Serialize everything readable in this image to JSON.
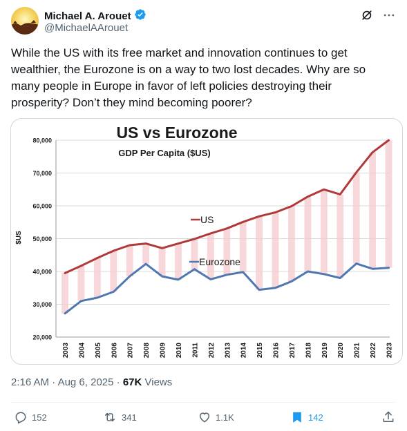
{
  "tweet": {
    "author_name": "Michael A. Arouet",
    "handle": "@MichaelAArouet",
    "verified_icon": "verified-badge-icon",
    "text": "While the US with its free market and innovation continues to get wealthier, the Eurozone is on a way to two lost decades. Why are so many people in Europe in favor of left policies destroying their prosperity? Don’t they mind becoming poorer?",
    "time": "2:16 AM",
    "separator": "·",
    "date": "Aug 6, 2025",
    "views_separator": "·",
    "views_count": "67K",
    "views_label": "Views"
  },
  "actions": {
    "replies": "152",
    "reposts": "341",
    "likes": "1.1K",
    "bookmarks": "142",
    "bookmark_color": "#1d9bf0"
  },
  "chart_data": {
    "type": "line",
    "title": "US vs Eurozone",
    "subtitle": "GDP Per Capita ($US)",
    "ylabel": "$US",
    "xlabel": "",
    "ylim": [
      20000,
      80000
    ],
    "yticks": [
      "20,000",
      "30,000",
      "40,000",
      "50,000",
      "60,000",
      "70,000",
      "80,000"
    ],
    "ytick_values": [
      20000,
      30000,
      40000,
      50000,
      60000,
      70000,
      80000
    ],
    "categories": [
      "2003",
      "2004",
      "2005",
      "2006",
      "2007",
      "2008",
      "2009",
      "2010",
      "2011",
      "2012",
      "2013",
      "2014",
      "2015",
      "2016",
      "2017",
      "2018",
      "2019",
      "2020",
      "2021",
      "2022",
      "2023"
    ],
    "series": [
      {
        "name": "US",
        "color": "#b03a3a",
        "values": [
          39500,
          41700,
          44100,
          46300,
          48000,
          48500,
          47100,
          48500,
          49900,
          51600,
          53100,
          55100,
          56800,
          58000,
          59900,
          62800,
          65000,
          63500,
          70200,
          76300,
          80000
        ]
      },
      {
        "name": "Eurozone",
        "color": "#4f78b0",
        "values": [
          27200,
          31000,
          32000,
          33800,
          38500,
          42300,
          38500,
          37500,
          40700,
          37600,
          39000,
          39800,
          34400,
          35000,
          37000,
          40000,
          39200,
          38000,
          42400,
          40800,
          41100
        ]
      }
    ],
    "fill_color": "#f6c9cf",
    "grid": true,
    "legend_placement": "inline"
  }
}
